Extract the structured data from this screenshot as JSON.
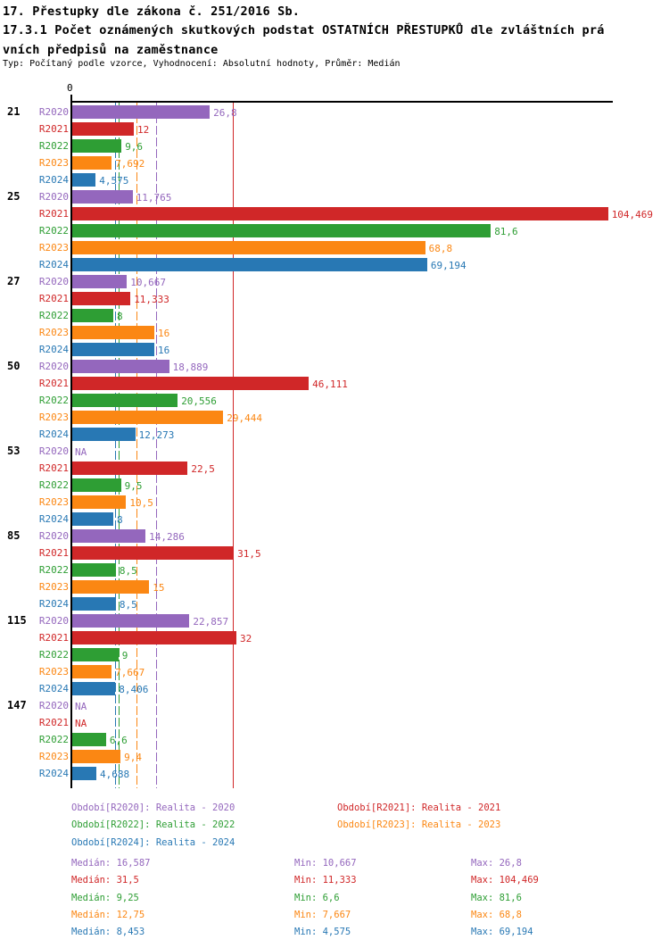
{
  "header": {
    "title": "17. Přestupky dle zákona č. 251/2016 Sb.",
    "subtitle_line1": "17.3.1 Počet oznámených skutkových podstat OSTATNÍCH PŘESTUPKŮ dle zvláštních prá",
    "subtitle_line2": "vních předpisů na zaměstnance",
    "meta": "Typ: Počítaný podle vzorce, Vyhodnocení: Absolutní hodnoty, Průměr: Medián"
  },
  "chart_data": {
    "type": "bar",
    "orientation": "horizontal",
    "x_axis": {
      "tick_labels": [
        "0"
      ],
      "xlim": [
        0,
        105.6
      ],
      "grid": false
    },
    "na_text": "NA",
    "series": [
      {
        "name": "R2020",
        "color": "#9467bd",
        "median": 16.587,
        "line_style": "dashed",
        "legend_label": "Období[R2020]: Realita - 2020",
        "stats": {
          "median": "Medián: 16,587",
          "min": "Min: 10,667",
          "max": "Max: 26,8"
        }
      },
      {
        "name": "R2021",
        "color": "#d02728",
        "median": 31.5,
        "line_style": "solid",
        "legend_label": "Období[R2021]: Realita - 2021",
        "stats": {
          "median": "Medián: 31,5",
          "min": "Min: 11,333",
          "max": "Max: 104,469"
        }
      },
      {
        "name": "R2022",
        "color": "#2e9e34",
        "median": 9.25,
        "line_style": "dashed",
        "legend_label": "Období[R2022]: Realita - 2022",
        "stats": {
          "median": "Medián: 9,25",
          "min": "Min: 6,6",
          "max": "Max: 81,6"
        }
      },
      {
        "name": "R2023",
        "color": "#fb8713",
        "median": 12.75,
        "line_style": "dashed",
        "legend_label": "Období[R2023]: Realita - 2023",
        "stats": {
          "median": "Medián: 12,75",
          "min": "Min: 7,667",
          "max": "Max: 68,8"
        }
      },
      {
        "name": "R2024",
        "color": "#2878b4",
        "median": 8.453,
        "line_style": "dashed",
        "legend_label": "Období[R2024]: Realita - 2024",
        "stats": {
          "median": "Medián: 8,453",
          "min": "Min: 4,575",
          "max": "Max: 69,194"
        }
      }
    ],
    "categories": [
      "21",
      "25",
      "27",
      "50",
      "53",
      "85",
      "115",
      "147"
    ],
    "groups": [
      {
        "category": "21",
        "values": [
          26.8,
          12,
          9.6,
          7.692,
          4.575
        ],
        "labels": [
          "26,8",
          "12",
          "9,6",
          "7,692",
          "4,575"
        ]
      },
      {
        "category": "25",
        "values": [
          11.765,
          104.469,
          81.6,
          68.8,
          69.194
        ],
        "labels": [
          "11,765",
          "104,469",
          "81,6",
          "68,8",
          "69,194"
        ]
      },
      {
        "category": "27",
        "values": [
          10.667,
          11.333,
          8,
          16,
          16
        ],
        "labels": [
          "10,667",
          "11,333",
          "8",
          "16",
          "16"
        ]
      },
      {
        "category": "50",
        "values": [
          18.889,
          46.111,
          20.556,
          29.444,
          12.273
        ],
        "labels": [
          "18,889",
          "46,111",
          "20,556",
          "29,444",
          "12,273"
        ]
      },
      {
        "category": "53",
        "values": [
          null,
          22.5,
          9.5,
          10.5,
          8
        ],
        "labels": [
          "NA",
          "22,5",
          "9,5",
          "10,5",
          "8"
        ]
      },
      {
        "category": "85",
        "values": [
          14.286,
          31.5,
          8.5,
          15,
          8.5
        ],
        "labels": [
          "14,286",
          "31,5",
          "8,5",
          "15",
          "8,5"
        ]
      },
      {
        "category": "115",
        "values": [
          22.857,
          32,
          9,
          7.667,
          8.406
        ],
        "labels": [
          "22,857",
          "32",
          "9",
          "7,667",
          "8,406"
        ]
      },
      {
        "category": "147",
        "values": [
          null,
          null,
          6.6,
          9.4,
          4.688
        ],
        "labels": [
          "NA",
          "NA",
          "6,6",
          "9,4",
          "4,688"
        ]
      }
    ]
  }
}
